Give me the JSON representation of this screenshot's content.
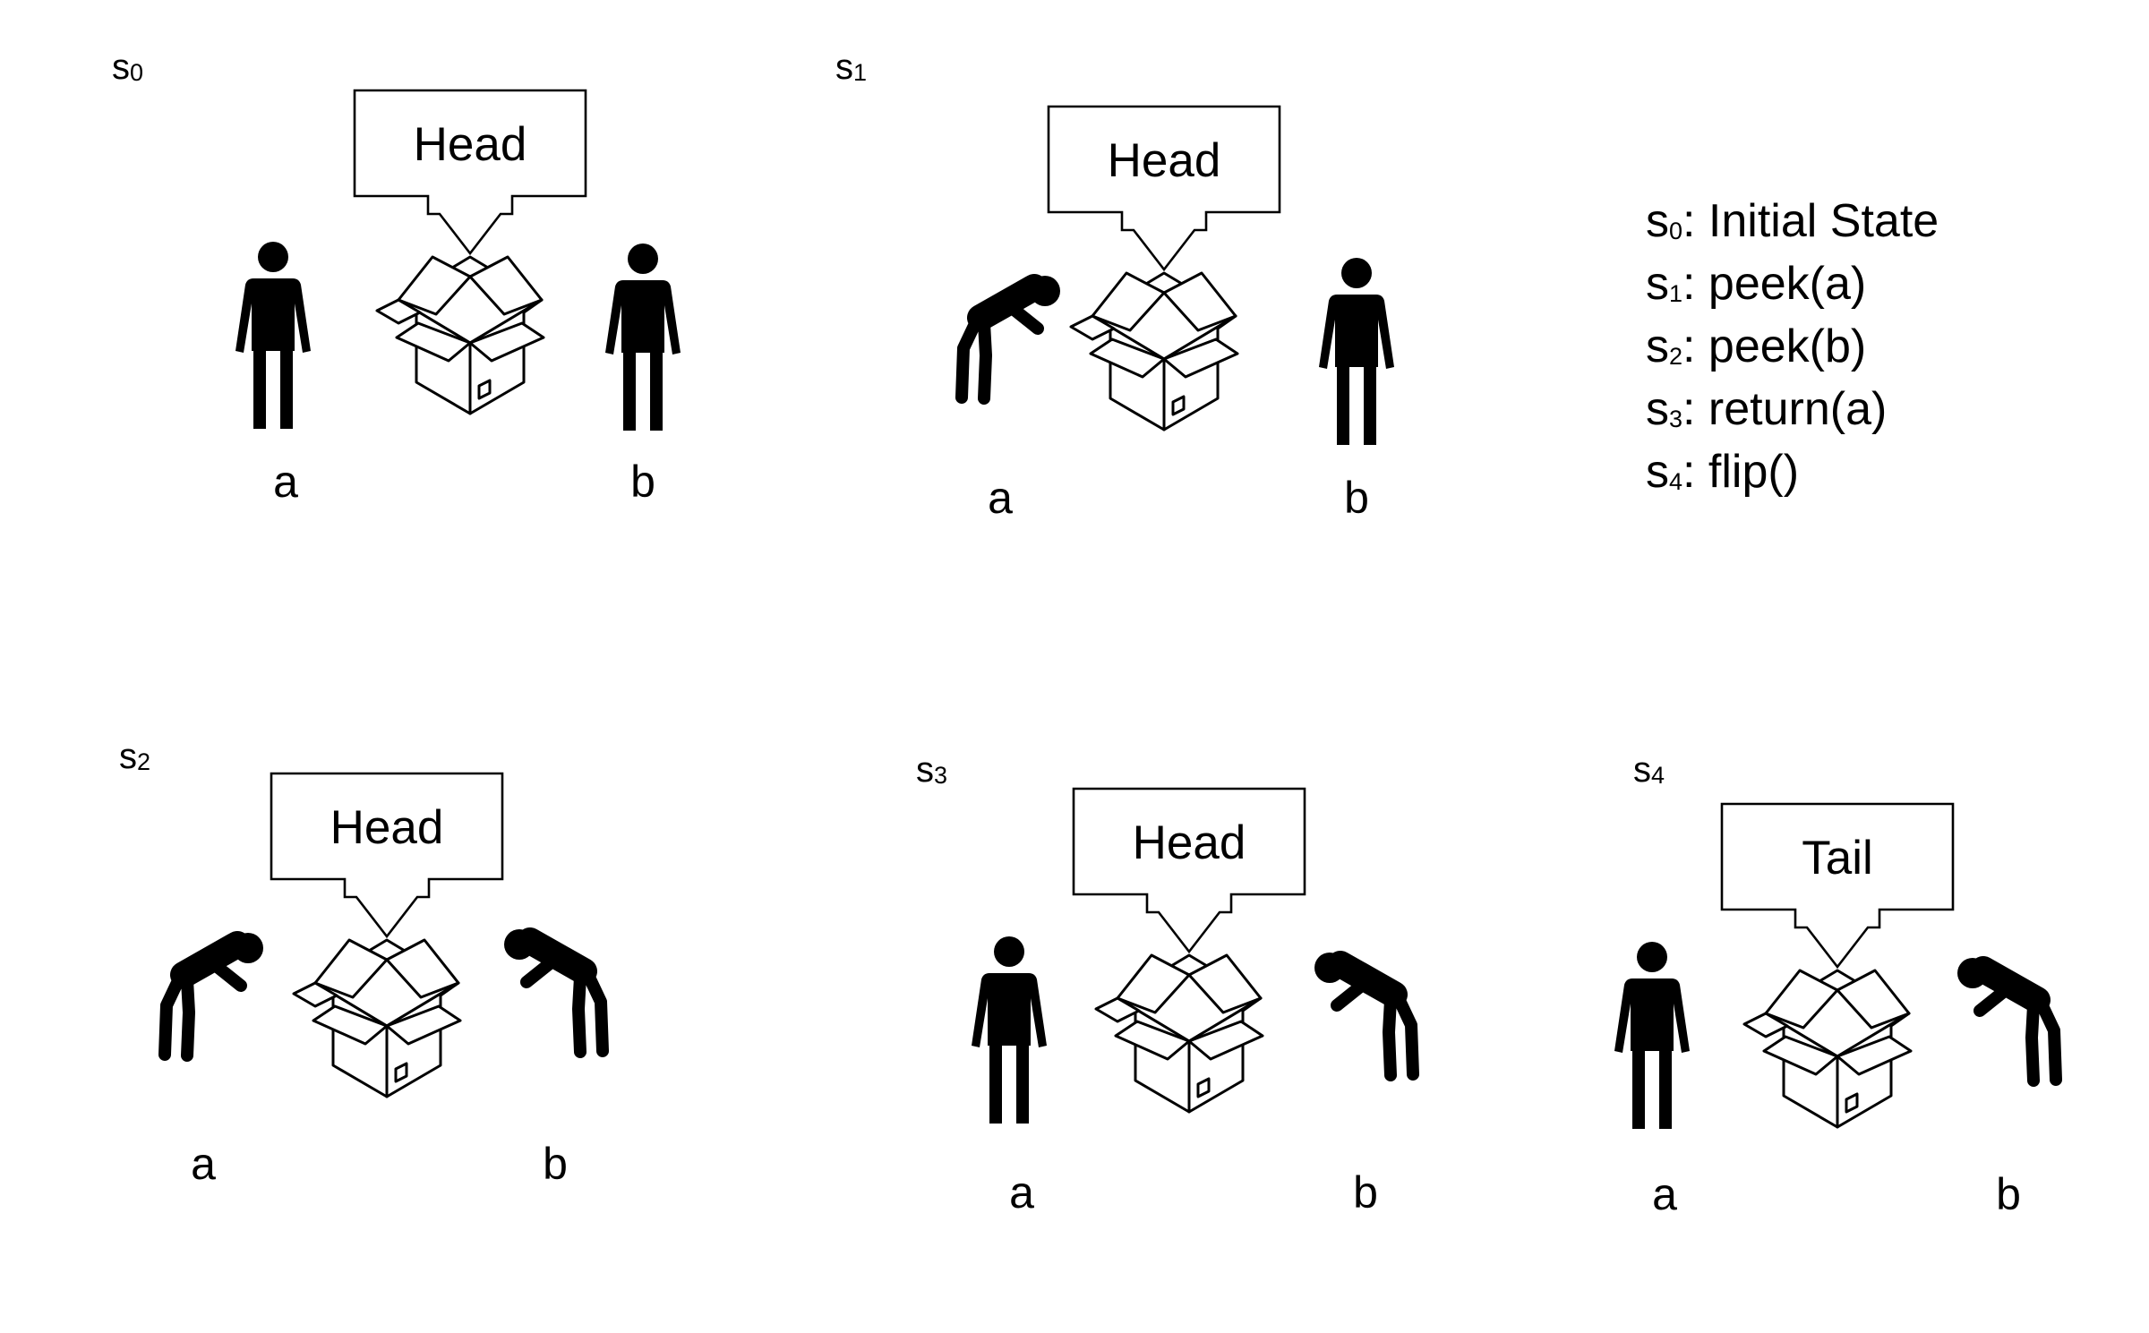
{
  "states": [
    {
      "id": "s0",
      "letter": "s",
      "index": "0",
      "callout": "Head",
      "person_a": "a",
      "person_b": "b",
      "a_pose": "standing",
      "b_pose": "standing"
    },
    {
      "id": "s1",
      "letter": "s",
      "index": "1",
      "callout": "Head",
      "person_a": "a",
      "person_b": "b",
      "a_pose": "peeking",
      "b_pose": "standing"
    },
    {
      "id": "s2",
      "letter": "s",
      "index": "2",
      "callout": "Head",
      "person_a": "a",
      "person_b": "b",
      "a_pose": "peeking",
      "b_pose": "peeking"
    },
    {
      "id": "s3",
      "letter": "s",
      "index": "3",
      "callout": "Head",
      "person_a": "a",
      "person_b": "b",
      "a_pose": "standing",
      "b_pose": "peeking"
    },
    {
      "id": "s4",
      "letter": "s",
      "index": "4",
      "callout": "Tail",
      "person_a": "a",
      "person_b": "b",
      "a_pose": "standing",
      "b_pose": "peeking"
    }
  ],
  "legend": [
    {
      "letter": "s",
      "index": "0",
      "text": ": Initial State"
    },
    {
      "letter": "s",
      "index": "1",
      "text": ": peek(a)"
    },
    {
      "letter": "s",
      "index": "2",
      "text": ": peek(b)"
    },
    {
      "letter": "s",
      "index": "3",
      "text": ": return(a)"
    },
    {
      "letter": "s",
      "index": "4",
      "text": ": flip()"
    }
  ],
  "icons": {
    "standing": "person-standing-icon",
    "peeking": "person-peeking-icon",
    "box": "open-box-icon",
    "callout": "callout-arrow-icon"
  },
  "colors": {
    "ink": "#000000",
    "background": "#ffffff"
  }
}
